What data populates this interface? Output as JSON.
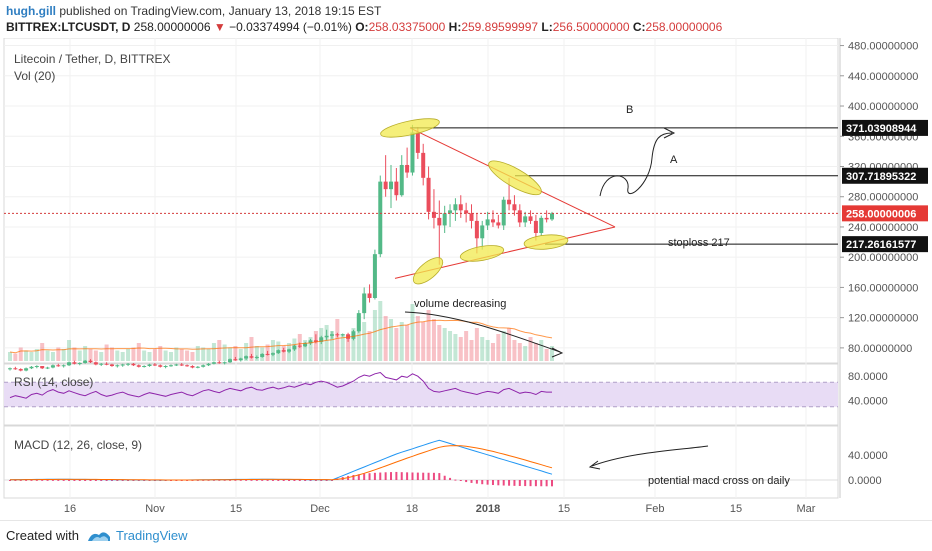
{
  "header": {
    "author": "hugh.gill",
    "published_text": "published on TradingView.com, January 13, 2018 19:15 EST",
    "symbol": "BITTREX:LTCUSDT, D",
    "last_price": "258.00000006",
    "change_arrow": "▼",
    "change": "−0.03374994 (−0.01%)",
    "open_label": "O:",
    "open": "258.03375000",
    "high_label": "H:",
    "high": "259.89599997",
    "low_label": "L:",
    "low": "256.50000000",
    "close_label": "C:",
    "close": "258.00000006"
  },
  "pane_titles": {
    "main": "Litecoin / Tether, D, BITTREX",
    "volume": "Vol (20)",
    "rsi": "RSI (14, close)",
    "macd": "MACD (12, 26, close, 9)"
  },
  "price_axis": {
    "ticks": [
      "480.00000000",
      "440.00000000",
      "400.00000000",
      "360.00000000",
      "320.00000000",
      "280.00000000",
      "240.00000000",
      "200.00000000",
      "160.00000000",
      "120.00000000",
      "80.00000000"
    ],
    "labels": [
      {
        "text": "371.03908944",
        "style": "black"
      },
      {
        "text": "307.71895322",
        "style": "black"
      },
      {
        "text": "258.00000006",
        "style": "red"
      },
      {
        "text": "217.26161577",
        "style": "black"
      }
    ]
  },
  "rsi_axis": {
    "ticks": [
      "80.0000",
      "40.0000"
    ]
  },
  "macd_axis": {
    "ticks": [
      "40.0000",
      "0.0000"
    ]
  },
  "time_axis": {
    "ticks": [
      "16",
      "Nov",
      "15",
      "Dec",
      "18",
      "2018",
      "15",
      "Feb",
      "15",
      "Mar"
    ]
  },
  "annotations": {
    "a": "A",
    "b": "B",
    "stoploss": "stoploss 217",
    "volume": "volume decreasing",
    "macd": "potential macd cross on daily"
  },
  "footer": {
    "created_with": "Created with",
    "brand": "TradingView"
  },
  "colors": {
    "up": "#53b987",
    "down": "#eb4d5c",
    "rsi_band": "#e8dcf5",
    "rsi_line": "#8e24aa",
    "macd_line": "#2196f3",
    "signal_line": "#ff6d00",
    "hist": "#e91e63",
    "trend": "#e53935",
    "highlight": "#f2e94e"
  },
  "chart_data": {
    "type": "candlestick",
    "symbol": "BITTREX:LTCUSDT",
    "interval": "D",
    "price_range": [
      60,
      490
    ],
    "key_levels": [
      371.03908944,
      307.71895322,
      258.00000006,
      217.26161577
    ],
    "ohlc_last": {
      "open": 258.03375,
      "high": 259.89599997,
      "low": 256.5,
      "close": 258.00000006
    },
    "candles": [
      [
        52,
        54,
        50,
        53
      ],
      [
        53,
        55,
        51,
        52
      ],
      [
        52,
        53,
        49,
        50
      ],
      [
        50,
        54,
        49,
        53
      ],
      [
        53,
        56,
        52,
        55
      ],
      [
        55,
        57,
        53,
        56
      ],
      [
        56,
        56,
        52,
        53
      ],
      [
        53,
        55,
        52,
        54
      ],
      [
        54,
        58,
        53,
        57
      ],
      [
        57,
        59,
        55,
        56
      ],
      [
        56,
        58,
        54,
        57
      ],
      [
        57,
        62,
        56,
        61
      ],
      [
        61,
        63,
        58,
        59
      ],
      [
        59,
        61,
        57,
        60
      ],
      [
        60,
        64,
        59,
        63
      ],
      [
        63,
        65,
        60,
        61
      ],
      [
        61,
        62,
        57,
        58
      ],
      [
        58,
        60,
        56,
        59
      ],
      [
        59,
        61,
        57,
        58
      ],
      [
        58,
        59,
        55,
        56
      ],
      [
        56,
        58,
        54,
        57
      ],
      [
        57,
        59,
        55,
        58
      ],
      [
        58,
        60,
        56,
        59
      ],
      [
        59,
        60,
        56,
        57
      ],
      [
        57,
        58,
        54,
        55
      ],
      [
        55,
        57,
        54,
        56
      ],
      [
        56,
        59,
        55,
        58
      ],
      [
        58,
        60,
        56,
        57
      ],
      [
        57,
        58,
        54,
        55
      ],
      [
        55,
        57,
        53,
        56
      ],
      [
        56,
        58,
        55,
        57
      ],
      [
        57,
        59,
        56,
        58
      ],
      [
        58,
        60,
        56,
        57
      ],
      [
        57,
        58,
        55,
        56
      ],
      [
        56,
        57,
        53,
        54
      ],
      [
        54,
        56,
        53,
        55
      ],
      [
        55,
        58,
        54,
        57
      ],
      [
        57,
        60,
        56,
        59
      ],
      [
        59,
        62,
        58,
        61
      ],
      [
        61,
        63,
        59,
        60
      ],
      [
        60,
        62,
        58,
        61
      ],
      [
        61,
        66,
        60,
        65
      ],
      [
        65,
        68,
        63,
        64
      ],
      [
        64,
        67,
        62,
        66
      ],
      [
        66,
        70,
        64,
        69
      ],
      [
        69,
        72,
        66,
        67
      ],
      [
        67,
        70,
        65,
        68
      ],
      [
        68,
        73,
        67,
        72
      ],
      [
        72,
        76,
        70,
        71
      ],
      [
        71,
        74,
        69,
        73
      ],
      [
        73,
        78,
        72,
        77
      ],
      [
        77,
        80,
        74,
        75
      ],
      [
        75,
        79,
        73,
        78
      ],
      [
        78,
        84,
        76,
        83
      ],
      [
        83,
        87,
        80,
        82
      ],
      [
        82,
        88,
        81,
        86
      ],
      [
        86,
        92,
        84,
        90
      ],
      [
        90,
        98,
        86,
        88
      ],
      [
        88,
        96,
        85,
        94
      ],
      [
        94,
        104,
        90,
        96
      ],
      [
        96,
        102,
        92,
        98
      ],
      [
        98,
        100,
        94,
        97
      ],
      [
        97,
        99,
        95,
        98
      ],
      [
        98,
        100,
        88,
        92
      ],
      [
        92,
        104,
        90,
        102
      ],
      [
        102,
        130,
        100,
        126
      ],
      [
        126,
        160,
        118,
        152
      ],
      [
        152,
        164,
        140,
        146
      ],
      [
        146,
        210,
        144,
        204
      ],
      [
        204,
        308,
        200,
        300
      ],
      [
        300,
        335,
        280,
        290
      ],
      [
        290,
        322,
        265,
        300
      ],
      [
        300,
        318,
        275,
        282
      ],
      [
        282,
        335,
        280,
        322
      ],
      [
        322,
        345,
        305,
        312
      ],
      [
        312,
        375,
        308,
        365
      ],
      [
        365,
        372,
        330,
        338
      ],
      [
        338,
        350,
        295,
        305
      ],
      [
        305,
        320,
        250,
        260
      ],
      [
        260,
        290,
        238,
        252
      ],
      [
        252,
        275,
        190,
        242
      ],
      [
        242,
        268,
        232,
        258
      ],
      [
        258,
        270,
        240,
        262
      ],
      [
        262,
        278,
        248,
        270
      ],
      [
        270,
        282,
        252,
        262
      ],
      [
        262,
        272,
        246,
        258
      ],
      [
        258,
        270,
        238,
        248
      ],
      [
        248,
        258,
        205,
        225
      ],
      [
        225,
        248,
        210,
        242
      ],
      [
        242,
        260,
        236,
        250
      ],
      [
        250,
        262,
        240,
        246
      ],
      [
        246,
        256,
        238,
        242
      ],
      [
        242,
        280,
        236,
        276
      ],
      [
        276,
        305,
        262,
        270
      ],
      [
        270,
        282,
        255,
        262
      ],
      [
        262,
        270,
        240,
        246
      ],
      [
        246,
        260,
        240,
        254
      ],
      [
        254,
        262,
        244,
        248
      ],
      [
        248,
        256,
        222,
        232
      ],
      [
        232,
        255,
        228,
        252
      ],
      [
        252,
        262,
        246,
        250
      ],
      [
        250,
        260,
        248,
        258
      ]
    ],
    "volume": "20-period volume bars with MA (volume decreasing into triangle apex)",
    "rsi": {
      "period": 14,
      "upper": 70,
      "lower": 30
    },
    "macd": {
      "fast": 12,
      "slow": 26,
      "signal": 9
    }
  }
}
